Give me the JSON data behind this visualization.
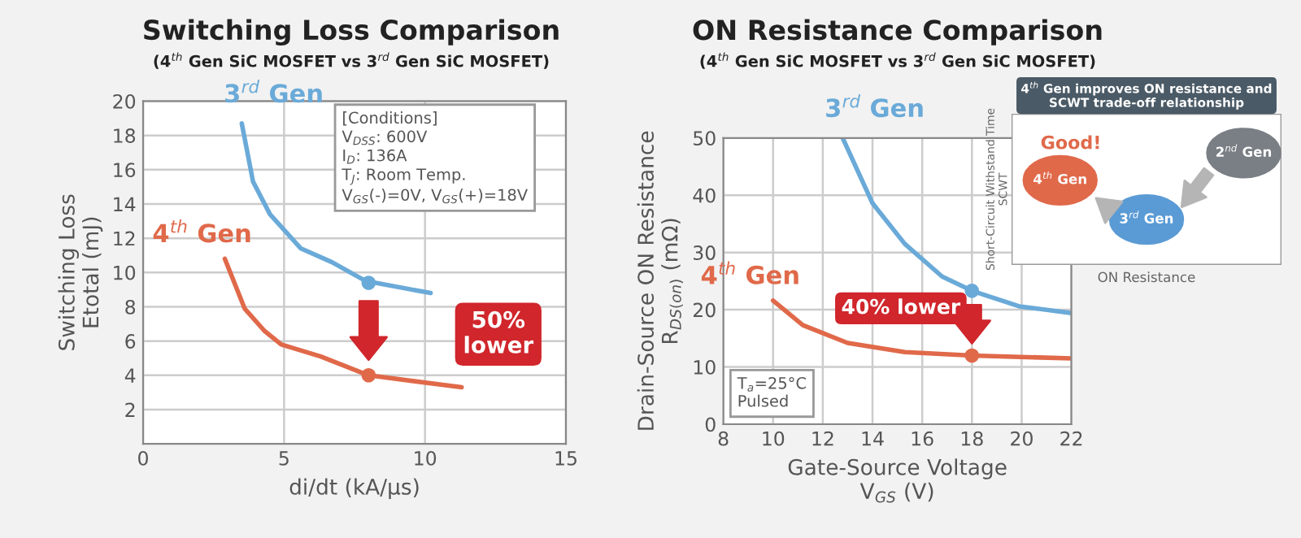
{
  "chart_data": [
    {
      "type": "line",
      "title": "Switching Loss Comparison",
      "subtitle": "(4$^{th}$ Gen SiC MOSFET vs 3$^{rd}$ Gen SiC MOSFET)",
      "xlabel": "di/dt (kA/μs)",
      "ylabel": "Switching Loss\nEtotal (mJ)",
      "xlim": [
        0,
        15
      ],
      "xticks": [
        0,
        5,
        10,
        15
      ],
      "ylim": [
        0,
        20
      ],
      "yticks": [
        2,
        4,
        6,
        8,
        10,
        12,
        14,
        16,
        18,
        20
      ],
      "grid": true,
      "series": [
        {
          "name": "3$^{rd}$ Gen",
          "color": "#6aaad8",
          "x": [
            3.5,
            3.9,
            4.5,
            5.6,
            6.7,
            7.9,
            10.2
          ],
          "values": [
            18.7,
            15.3,
            13.4,
            11.4,
            10.6,
            9.5,
            8.8
          ]
        },
        {
          "name": "4$^{th}$ Gen",
          "color": "#e0694a",
          "x": [
            2.9,
            3.6,
            4.3,
            4.9,
            6.3,
            8.0,
            11.3
          ],
          "values": [
            10.8,
            7.9,
            6.6,
            5.8,
            5.1,
            4.0,
            3.3
          ]
        },
        {
          "type": "scatter",
          "marker": "circle",
          "color": "#6aaad8",
          "x": [
            8.0
          ],
          "values": [
            9.4
          ]
        },
        {
          "type": "scatter",
          "marker": "circle",
          "color": "#e0694a",
          "x": [
            8.0
          ],
          "values": [
            4.0
          ]
        }
      ],
      "annotations": [
        "[Conditions]\nV$_{DSS}$: 600V\nI$_{D}$: 136A\nT$_{J}$: Room Temp.\nV$_{GS}$(-)=0V, V$_{GS}$(+)=18V",
        "50%\nlower"
      ]
    },
    {
      "type": "line",
      "title": "ON Resistance Comparison",
      "subtitle": "(4$^{th}$ Gen SiC MOSFET vs 3$^{rd}$ Gen SiC MOSFET)",
      "xlabel": "Gate-Source Voltage\nV$_{GS}$ (V)",
      "ylabel": "Drain-Source ON Resistance\nR$_{DS(on)}$ (mΩ)",
      "xlim": [
        8,
        22
      ],
      "xticks": [
        8,
        10,
        12,
        14,
        16,
        18,
        20,
        22
      ],
      "ylim": [
        0,
        50
      ],
      "yticks": [
        0,
        10,
        20,
        30,
        40,
        50
      ],
      "grid": true,
      "series": [
        {
          "name": "3$^{rd}$ Gen",
          "color": "#6aaad8",
          "x": [
            12.8,
            14.0,
            15.3,
            16.8,
            18.0,
            19.9,
            22.0
          ],
          "values": [
            50,
            38.6,
            31.5,
            25.8,
            23.3,
            20.6,
            19.4
          ]
        },
        {
          "name": "4$^{th}$ Gen",
          "color": "#e0694a",
          "x": [
            10.0,
            11.2,
            13.0,
            15.3,
            18.0,
            22.0
          ],
          "values": [
            21.6,
            17.3,
            14.2,
            12.6,
            12.0,
            11.5
          ]
        },
        {
          "type": "scatter",
          "marker": "circle",
          "color": "#6aaad8",
          "x": [
            18.0
          ],
          "values": [
            23.3
          ]
        },
        {
          "type": "scatter",
          "marker": "circle",
          "color": "#e0694a",
          "x": [
            18.0
          ],
          "values": [
            12.0
          ]
        }
      ],
      "annotations": [
        "T$_{a}$=25°C\nPulsed",
        "40% lower"
      ]
    },
    {
      "type": "other",
      "title": "4$^{th}$ Gen improves ON resistance and\nSCWT trade-off relationship",
      "xlabel": "ON Resistance",
      "ylabel": "Short-Circuit Withstand Time\nSCWT",
      "annotations": [
        "Good!",
        "4$^{th}$ Gen",
        "3$^{rd}$ Gen",
        "2$^{nd}$ Gen"
      ]
    }
  ]
}
